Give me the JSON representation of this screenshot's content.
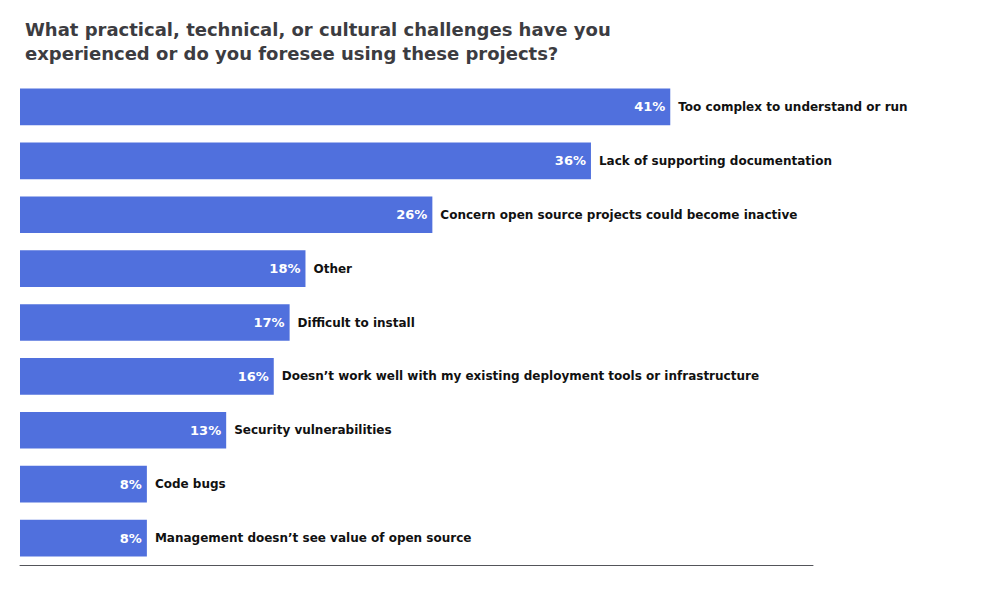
{
  "chart_data": {
    "type": "bar",
    "orientation": "horizontal",
    "title": "What practical, technical, or cultural challenges have you\nexperienced or do you foresee using these projects?",
    "categories": [
      "Too complex to understand or run",
      "Lack of supporting documentation",
      "Concern open source projects could become inactive",
      "Other",
      "Difficult to install",
      "Doesn’t work well with my existing deployment tools or infrastructure",
      "Security vulnerabilities",
      "Code bugs",
      "Management doesn’t see value of open source"
    ],
    "values": [
      41,
      36,
      26,
      18,
      17,
      16,
      13,
      8,
      8
    ],
    "value_labels": [
      "41%",
      "36%",
      "26%",
      "18%",
      "17%",
      "16%",
      "13%",
      "8%",
      "8%"
    ],
    "data_labels": true,
    "xlim": [
      0,
      50
    ],
    "grid": false,
    "tick_labels": false
  }
}
